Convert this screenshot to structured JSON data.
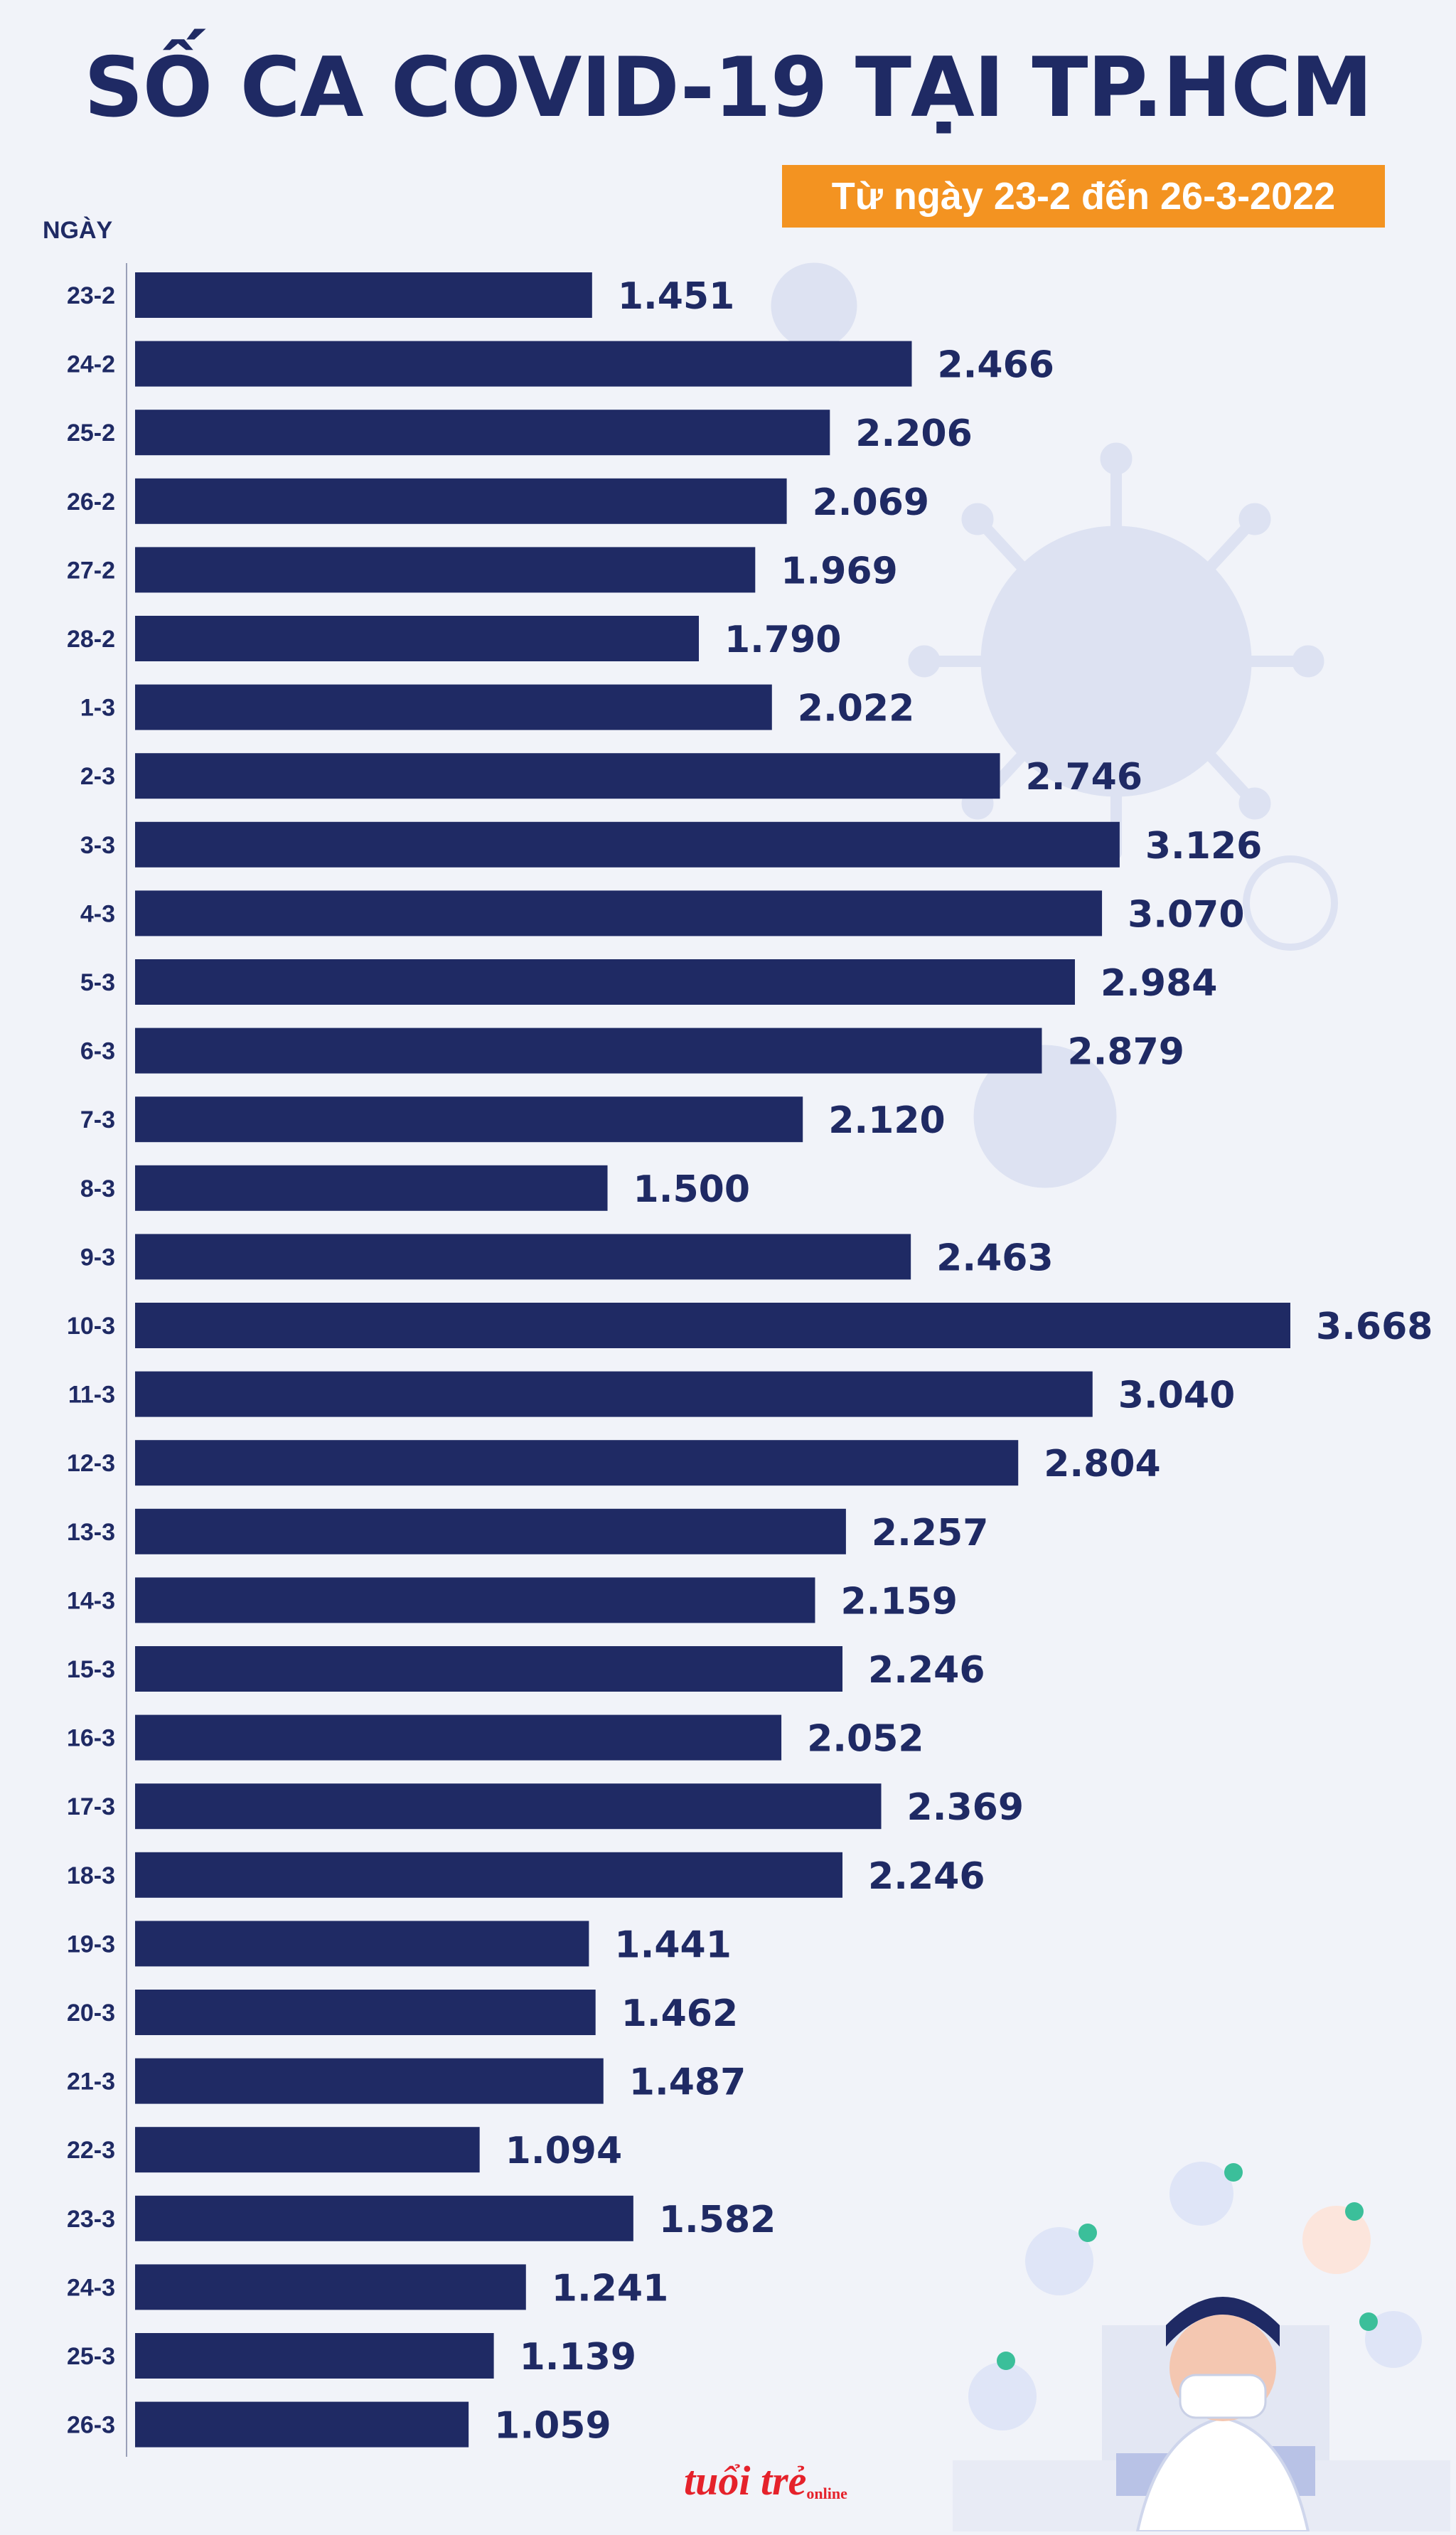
{
  "title": "SỐ CA COVID-19 TẠI TP.HCM",
  "subtitle": "Từ ngày 23-2 đến 26-3-2022",
  "logo": {
    "text": "tuổi trẻ",
    "sub": "online"
  },
  "colors": {
    "bar": "#1f2a64",
    "accent": "#f39321",
    "text": "#1f2a64",
    "background": "#f1f3f9"
  },
  "chart_data": {
    "type": "bar",
    "orientation": "horizontal",
    "ylabel": "NGÀY",
    "categories": [
      "23-2",
      "24-2",
      "25-2",
      "26-2",
      "27-2",
      "28-2",
      "1-3",
      "2-3",
      "3-3",
      "4-3",
      "5-3",
      "6-3",
      "7-3",
      "8-3",
      "9-3",
      "10-3",
      "11-3",
      "12-3",
      "13-3",
      "14-3",
      "15-3",
      "16-3",
      "17-3",
      "18-3",
      "19-3",
      "20-3",
      "21-3",
      "22-3",
      "23-3",
      "24-3",
      "25-3",
      "26-3"
    ],
    "values": [
      1451,
      2466,
      2206,
      2069,
      1969,
      1790,
      2022,
      2746,
      3126,
      3070,
      2984,
      2879,
      2120,
      1500,
      2463,
      3668,
      3040,
      2804,
      2257,
      2159,
      2246,
      2052,
      2369,
      2246,
      1441,
      1462,
      1487,
      1094,
      1582,
      1241,
      1139,
      1059
    ],
    "value_labels": [
      "1.451",
      "2.466",
      "2.206",
      "2.069",
      "1.969",
      "1.790",
      "2.022",
      "2.746",
      "3.126",
      "3.070",
      "2.984",
      "2.879",
      "2.120",
      "1.500",
      "2.463",
      "3.668",
      "3.040",
      "2.804",
      "2.257",
      "2.159",
      "2.246",
      "2.052",
      "2.369",
      "2.246",
      "1.441",
      "1.462",
      "1.487",
      "1.094",
      "1.582",
      "1.241",
      "1.139",
      "1.059"
    ],
    "grid": false,
    "legend": "none"
  }
}
